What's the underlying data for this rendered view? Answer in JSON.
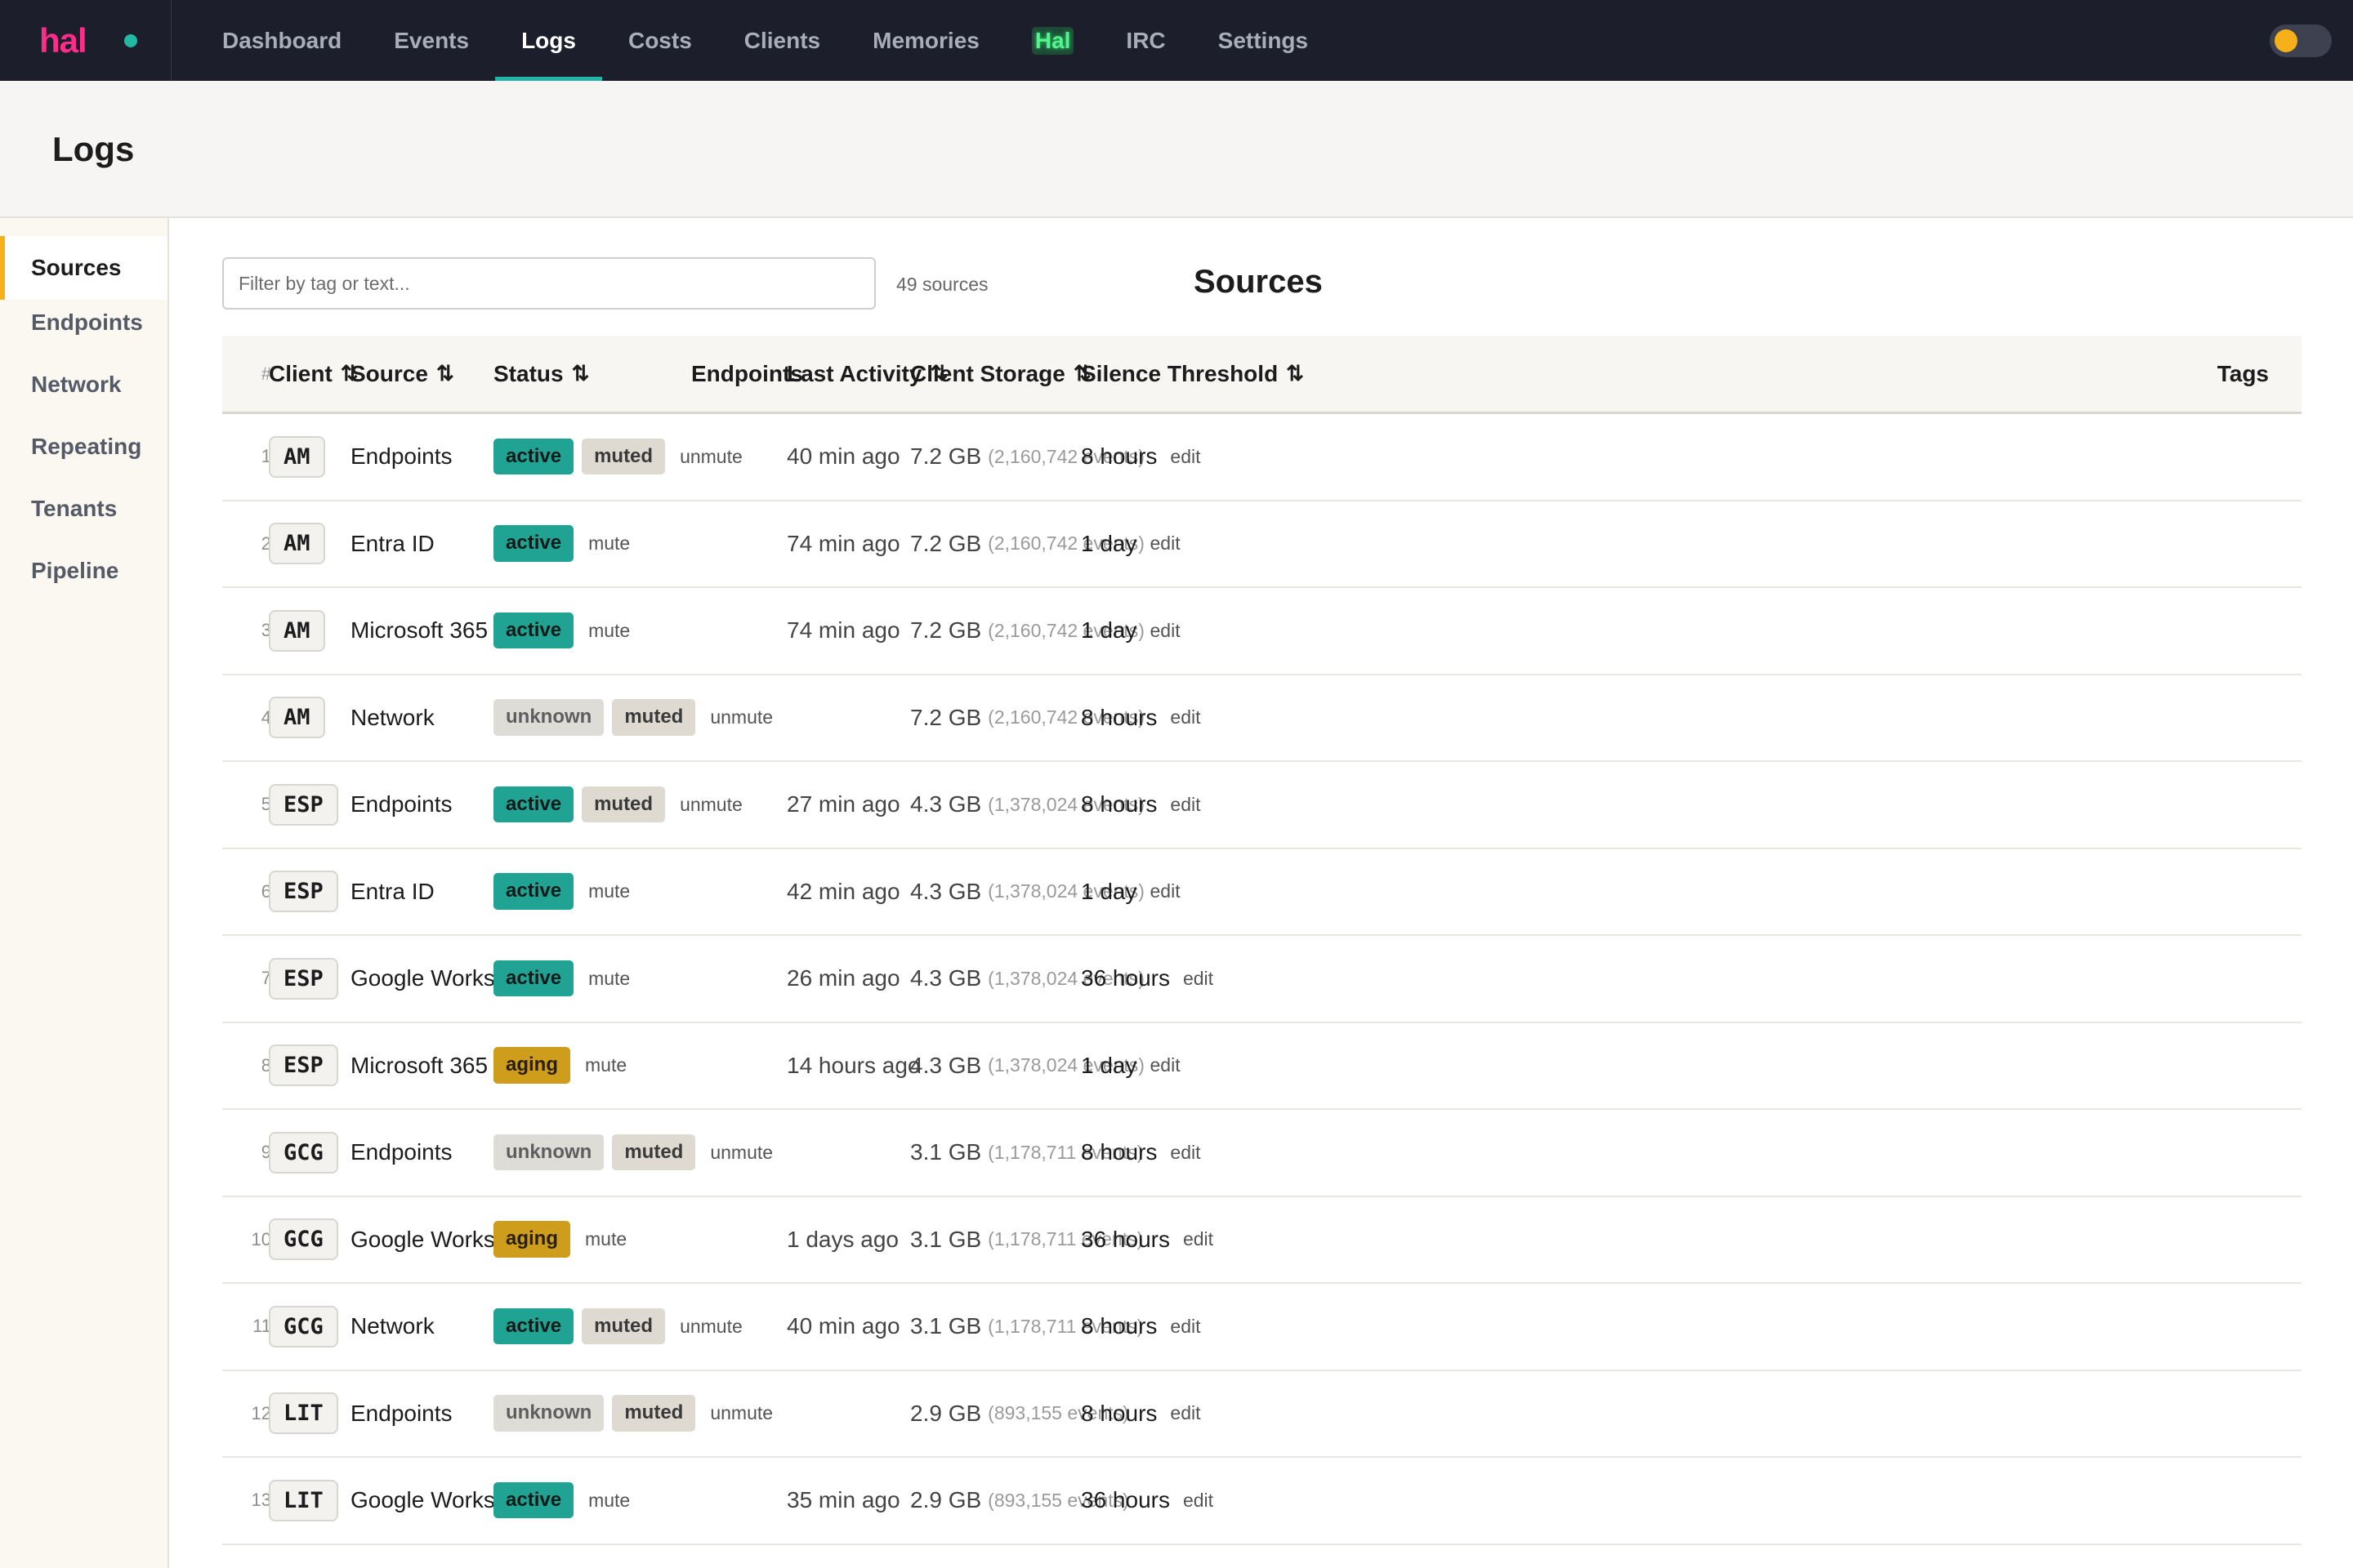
{
  "brand": {
    "name": "hal"
  },
  "nav": [
    {
      "label": "Dashboard",
      "active": false
    },
    {
      "label": "Events",
      "active": false
    },
    {
      "label": "Logs",
      "active": true
    },
    {
      "label": "Costs",
      "active": false
    },
    {
      "label": "Clients",
      "active": false
    },
    {
      "label": "Memories",
      "active": false
    },
    {
      "label": "Hal",
      "active": false,
      "highlight": true
    },
    {
      "label": "IRC",
      "active": false
    },
    {
      "label": "Settings",
      "active": false
    }
  ],
  "page": {
    "title": "Logs"
  },
  "sidebar": {
    "items": [
      {
        "label": "Sources",
        "active": true
      },
      {
        "label": "Endpoints",
        "active": false
      },
      {
        "label": "Network",
        "active": false
      },
      {
        "label": "Repeating",
        "active": false
      },
      {
        "label": "Tenants",
        "active": false
      },
      {
        "label": "Pipeline",
        "active": false
      }
    ]
  },
  "main": {
    "filter_placeholder": "Filter by tag or text...",
    "source_count": "49 sources",
    "section_title": "Sources"
  },
  "table": {
    "columns": [
      {
        "key": "num",
        "label": "#",
        "sortable": false
      },
      {
        "key": "client",
        "label": "Client",
        "sortable": true
      },
      {
        "key": "source",
        "label": "Source",
        "sortable": true
      },
      {
        "key": "status",
        "label": "Status",
        "sortable": true
      },
      {
        "key": "endpoints",
        "label": "Endpoints",
        "sortable": false
      },
      {
        "key": "last_activity",
        "label": "Last Activity",
        "sortable": true
      },
      {
        "key": "client_storage",
        "label": "Client Storage",
        "sortable": true
      },
      {
        "key": "silence_threshold",
        "label": "Silence Threshold",
        "sortable": true
      },
      {
        "key": "tags",
        "label": "Tags",
        "sortable": false
      }
    ],
    "sort_icon": "⇅",
    "edit_label": "edit",
    "rows": [
      {
        "num": "1",
        "client": "AM",
        "source": "Endpoints",
        "status": [
          "active",
          "muted"
        ],
        "action": "unmute",
        "last_activity": "40 min ago",
        "storage": "7.2 GB",
        "events": "(2,160,742 events)",
        "threshold": "8 hours"
      },
      {
        "num": "2",
        "client": "AM",
        "source": "Entra ID",
        "status": [
          "active"
        ],
        "action": "mute",
        "last_activity": "74 min ago",
        "storage": "7.2 GB",
        "events": "(2,160,742 events)",
        "threshold": "1 day"
      },
      {
        "num": "3",
        "client": "AM",
        "source": "Microsoft 365",
        "status": [
          "active"
        ],
        "action": "mute",
        "last_activity": "74 min ago",
        "storage": "7.2 GB",
        "events": "(2,160,742 events)",
        "threshold": "1 day"
      },
      {
        "num": "4",
        "client": "AM",
        "source": "Network",
        "status": [
          "unknown",
          "muted"
        ],
        "action": "unmute",
        "last_activity": "",
        "storage": "7.2 GB",
        "events": "(2,160,742 events)",
        "threshold": "8 hours"
      },
      {
        "num": "5",
        "client": "ESP",
        "source": "Endpoints",
        "status": [
          "active",
          "muted"
        ],
        "action": "unmute",
        "last_activity": "27 min ago",
        "storage": "4.3 GB",
        "events": "(1,378,024 events)",
        "threshold": "8 hours"
      },
      {
        "num": "6",
        "client": "ESP",
        "source": "Entra ID",
        "status": [
          "active"
        ],
        "action": "mute",
        "last_activity": "42 min ago",
        "storage": "4.3 GB",
        "events": "(1,378,024 events)",
        "threshold": "1 day"
      },
      {
        "num": "7",
        "client": "ESP",
        "source": "Google Workspace",
        "status": [
          "active"
        ],
        "action": "mute",
        "last_activity": "26 min ago",
        "storage": "4.3 GB",
        "events": "(1,378,024 events)",
        "threshold": "36 hours"
      },
      {
        "num": "8",
        "client": "ESP",
        "source": "Microsoft 365",
        "status": [
          "aging"
        ],
        "action": "mute",
        "last_activity": "14 hours ago",
        "storage": "4.3 GB",
        "events": "(1,378,024 events)",
        "threshold": "1 day"
      },
      {
        "num": "9",
        "client": "GCG",
        "source": "Endpoints",
        "status": [
          "unknown",
          "muted"
        ],
        "action": "unmute",
        "last_activity": "",
        "storage": "3.1 GB",
        "events": "(1,178,711 events)",
        "threshold": "8 hours"
      },
      {
        "num": "10",
        "client": "GCG",
        "source": "Google Workspace",
        "status": [
          "aging"
        ],
        "action": "mute",
        "last_activity": "1 days ago",
        "storage": "3.1 GB",
        "events": "(1,178,711 events)",
        "threshold": "36 hours"
      },
      {
        "num": "11",
        "client": "GCG",
        "source": "Network",
        "status": [
          "active",
          "muted"
        ],
        "action": "unmute",
        "last_activity": "40 min ago",
        "storage": "3.1 GB",
        "events": "(1,178,711 events)",
        "threshold": "8 hours"
      },
      {
        "num": "12",
        "client": "LIT",
        "source": "Endpoints",
        "status": [
          "unknown",
          "muted"
        ],
        "action": "unmute",
        "last_activity": "",
        "storage": "2.9 GB",
        "events": "(893,155 events)",
        "threshold": "8 hours"
      },
      {
        "num": "13",
        "client": "LIT",
        "source": "Google Workspace",
        "status": [
          "active"
        ],
        "action": "mute",
        "last_activity": "35 min ago",
        "storage": "2.9 GB",
        "events": "(893,155 events)",
        "threshold": "36 hours"
      }
    ]
  },
  "colors": {
    "accent": "#21b3a3",
    "brand": "#ff2d8a",
    "status_active": "#21a393",
    "status_aging": "#cf9d1c",
    "status_unknown": "#dedcd7",
    "sidebar_active": "#f5b01a"
  },
  "icons": {
    "sort": "sort-icon",
    "status_dot": "status-dot-icon",
    "theme_toggle": "theme-toggle-icon"
  }
}
